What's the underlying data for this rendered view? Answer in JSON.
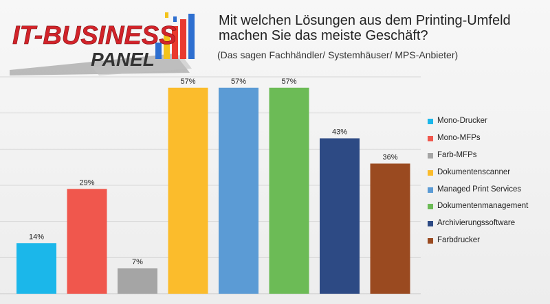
{
  "logo": {
    "line1": "IT-BUSINESS",
    "line2": "PANEL"
  },
  "header": {
    "title_line1": "Mit welchen Lösungen aus dem Printing-Umfeld",
    "title_line2": "machen Sie das meiste Geschäft?",
    "subtitle": "(Das sagen Fachhändler/ Systemhäuser/ MPS-Anbieter)"
  },
  "chart_data": {
    "type": "bar",
    "title": "Mit welchen Lösungen aus dem Printing-Umfeld machen Sie das meiste Geschäft?",
    "subtitle": "(Das sagen Fachhändler/ Systemhäuser/ MPS-Anbieter)",
    "categories": [
      "Mono-Drucker",
      "Mono-MFPs",
      "Farb-MFPs",
      "Dokumentenscanner",
      "Managed Print Services",
      "Dokumentenmanagement",
      "Archivierungssoftware",
      "Farbdrucker"
    ],
    "values": [
      14,
      29,
      7,
      57,
      57,
      57,
      43,
      36
    ],
    "value_labels": [
      "14%",
      "29%",
      "7%",
      "57%",
      "57%",
      "57%",
      "43%",
      "36%"
    ],
    "colors": [
      "#1bb7ea",
      "#f0574d",
      "#a5a5a5",
      "#fbbc2c",
      "#5b9bd5",
      "#6cbb56",
      "#2d4a84",
      "#9a4a20"
    ],
    "unit": "%",
    "ylim": [
      0,
      60
    ],
    "grid": true,
    "legend_position": "right"
  }
}
